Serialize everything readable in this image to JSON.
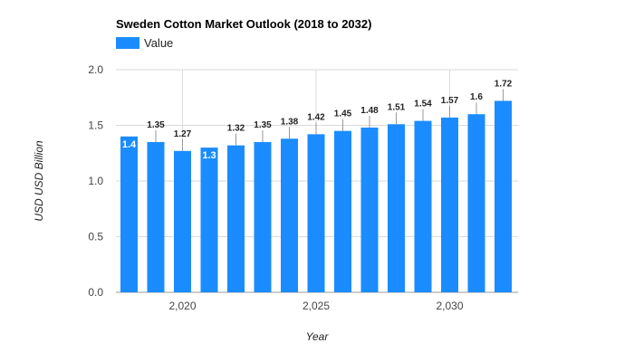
{
  "chart_data": {
    "type": "bar",
    "title": "Sweden Cotton Market Outlook (2018 to 2032)",
    "xlabel": "Year",
    "ylabel": "USD USD Billion",
    "ylim": [
      0,
      2.0
    ],
    "y_ticks": [
      "0.0",
      "0.5",
      "1.0",
      "1.5",
      "2.0"
    ],
    "x_ticks": [
      "2,020",
      "2,025",
      "2,030"
    ],
    "legend": {
      "position": "top-left",
      "entries": [
        "Value"
      ]
    },
    "grid": true,
    "series": [
      {
        "name": "Value",
        "color": "#1a8cff",
        "x": [
          2018,
          2019,
          2020,
          2021,
          2022,
          2023,
          2024,
          2025,
          2026,
          2027,
          2028,
          2029,
          2030,
          2031,
          2032
        ],
        "values": [
          1.4,
          1.35,
          1.27,
          1.3,
          1.32,
          1.35,
          1.38,
          1.42,
          1.45,
          1.48,
          1.51,
          1.54,
          1.57,
          1.6,
          1.72
        ],
        "labels": [
          "1.4",
          "1.35",
          "1.27",
          "1.3",
          "1.32",
          "1.35",
          "1.38",
          "1.42",
          "1.45",
          "1.48",
          "1.51",
          "1.54",
          "1.57",
          "1.6",
          "1.72"
        ]
      }
    ]
  }
}
